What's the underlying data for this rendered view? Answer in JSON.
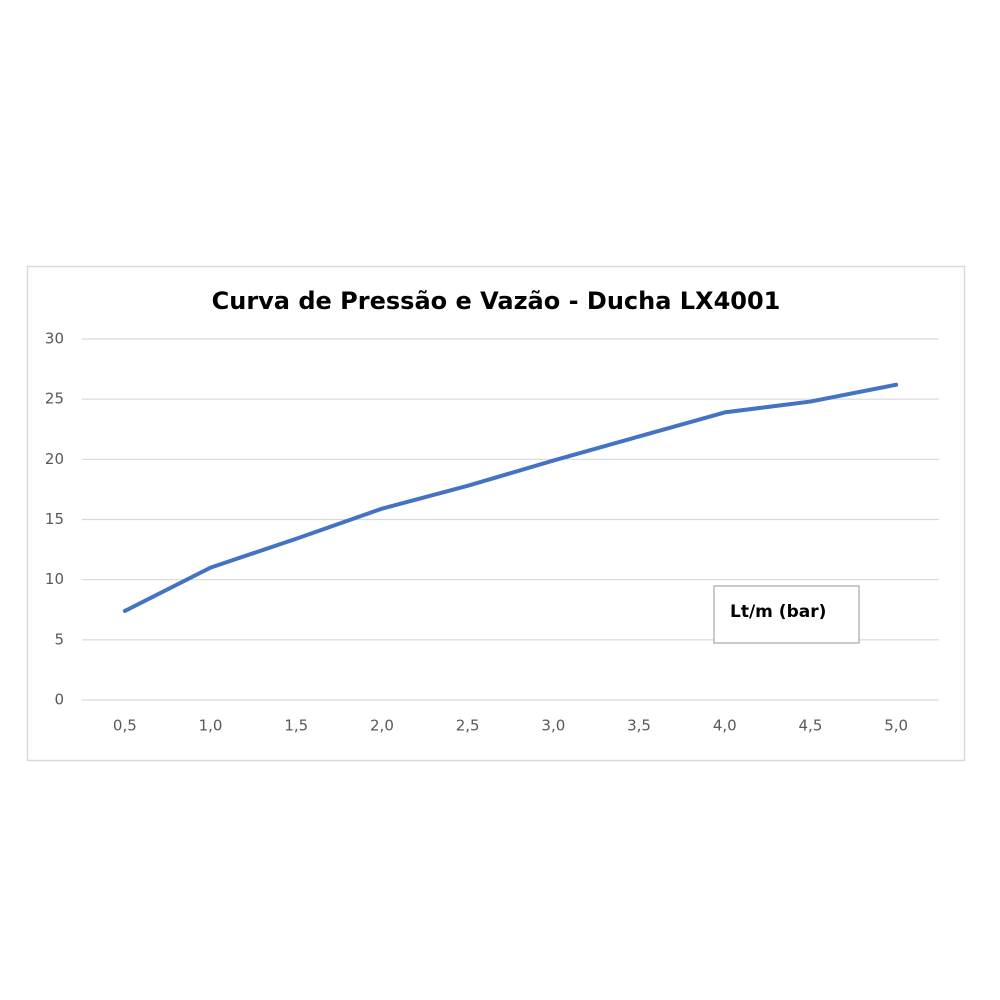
{
  "chart_data": {
    "type": "line",
    "title": "Curva de Pressão e Vazão - Ducha LX4001",
    "categories": [
      "0,5",
      "1,0",
      "1,5",
      "2,0",
      "2,5",
      "3,0",
      "3,5",
      "4,0",
      "4,5",
      "5,0"
    ],
    "series": [
      {
        "name": "Lt/m (bar)",
        "color": "#4472c4",
        "values": [
          7.4,
          11.0,
          13.4,
          15.9,
          17.8,
          19.9,
          21.9,
          23.9,
          24.8,
          26.2
        ]
      }
    ],
    "ylim": [
      0,
      30
    ],
    "yticks": [
      0,
      5,
      10,
      15,
      20,
      25,
      30
    ],
    "grid": true,
    "legend": "lower-right"
  }
}
